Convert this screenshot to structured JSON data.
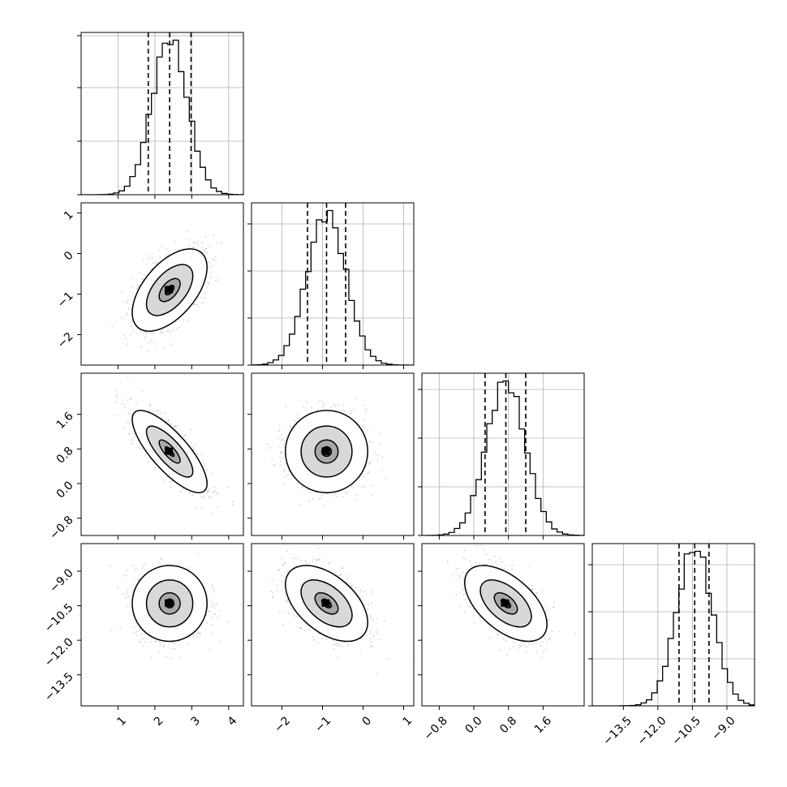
{
  "chart_data": {
    "type": "corner",
    "title": "",
    "parameters": [
      {
        "range": [
          0.0,
          4.4
        ],
        "ticks": [
          1,
          2,
          3,
          4
        ],
        "tick_labels": [
          "1",
          "2",
          "3",
          "4"
        ],
        "mean": 2.4,
        "sd": 0.48,
        "quantiles": [
          1.82,
          2.4,
          2.98
        ]
      },
      {
        "range": [
          -2.75,
          1.25
        ],
        "ticks": [
          -2,
          -1,
          0,
          1
        ],
        "tick_labels": [
          "−2",
          "−1",
          "0",
          "1"
        ],
        "mean": -0.9,
        "sd": 0.48,
        "quantiles": [
          -1.37,
          -0.9,
          -0.43
        ]
      },
      {
        "range": [
          -1.2,
          2.55
        ],
        "ticks": [
          -0.8,
          0.0,
          0.8,
          1.6
        ],
        "tick_labels": [
          "−0.8",
          "0.0",
          "0.8",
          "1.6"
        ],
        "mean": 0.74,
        "sd": 0.45,
        "quantiles": [
          0.26,
          0.74,
          1.2
        ]
      },
      {
        "range": [
          -14.85,
          -7.8
        ],
        "ticks": [
          -13.5,
          -12.0,
          -10.5,
          -9.0
        ],
        "tick_labels": [
          "−13.5",
          "−12.0",
          "−10.5",
          "−9.0"
        ],
        "mean": -10.4,
        "sd": 0.78,
        "quantiles": [
          -11.08,
          -10.4,
          -9.78
        ]
      }
    ],
    "correlations": [
      [
        1,
        0.55,
        -0.78,
        0.0
      ],
      [
        0.55,
        1,
        0.0,
        -0.5
      ],
      [
        -0.78,
        0.0,
        1,
        -0.55
      ],
      [
        0.0,
        -0.5,
        -0.55,
        1
      ]
    ],
    "diagonal_histogram_ticks": [
      [
        0.0,
        0.33,
        0.66,
        0.98
      ],
      [
        0.0,
        0.29,
        0.58,
        0.87
      ],
      [
        0.0,
        0.3,
        0.6,
        0.9
      ],
      [
        0.0,
        0.29,
        0.58,
        0.87
      ]
    ],
    "grid": true,
    "colors": {
      "lines": "#000000",
      "scatter": "#9a9a9a",
      "grid": "#b0b0b0"
    }
  }
}
